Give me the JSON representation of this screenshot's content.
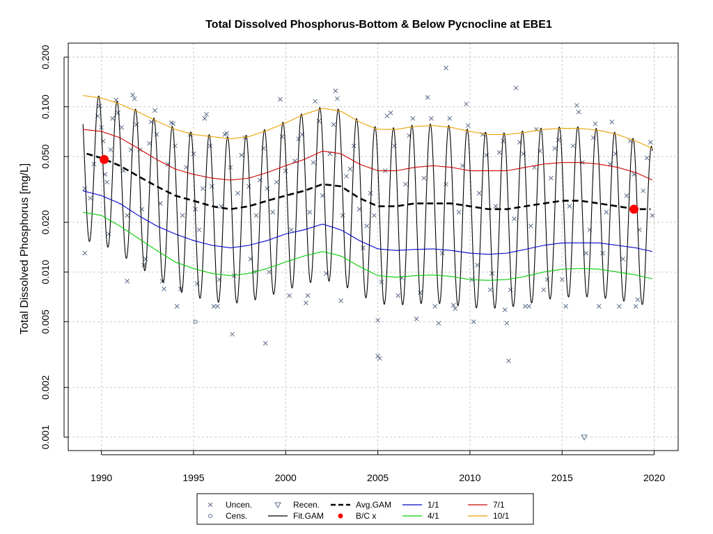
{
  "chart_data": {
    "type": "line",
    "title": "Total Dissolved Phosphorus-Bottom & Below Pycnocline at EBE1",
    "xlabel": "",
    "ylabel": "Total Dissolved Phosphorus [mg/L]",
    "y_scale": "log",
    "xlim": [
      1988.2,
      2021.3
    ],
    "ylim": [
      0.00083,
      0.243
    ],
    "x_ticks": [
      1990,
      1995,
      2000,
      2005,
      2010,
      2015,
      2020
    ],
    "x_tick_labels": [
      "1990",
      "1995",
      "2000",
      "2005",
      "2010",
      "2015",
      "2020"
    ],
    "y_ticks": [
      0.001,
      0.002,
      0.005,
      0.01,
      0.02,
      0.05,
      0.1,
      0.2
    ],
    "y_tick_labels": [
      "0.001",
      "0.002",
      "0.005",
      "0.010",
      "0.020",
      "0.050",
      "0.100",
      "0.200"
    ],
    "grid": true,
    "legend_position": "bottom-outside",
    "legend": [
      {
        "label": "Uncen.",
        "symbol": "x",
        "color": "#5a6b85"
      },
      {
        "label": "Cens.",
        "symbol": "circle-open",
        "color": "#5a6b85"
      },
      {
        "label": "Recen.",
        "symbol": "triangle-down-open",
        "color": "#5a6b85"
      },
      {
        "label": "Fit.GAM",
        "symbol": "line",
        "color": "#000000"
      },
      {
        "label": "Avg.GAM",
        "symbol": "dashed-line",
        "color": "#000000"
      },
      {
        "label": "B/C x",
        "symbol": "dot",
        "color": "#ff0000"
      },
      {
        "label": "1/1",
        "symbol": "line",
        "color": "#0000cc"
      },
      {
        "label": "4/1",
        "symbol": "line",
        "color": "#00cc00"
      },
      {
        "label": "7/1",
        "symbol": "line",
        "color": "#cc0000"
      },
      {
        "label": "10/1",
        "symbol": "line",
        "color": "#e8a000"
      }
    ],
    "series": [
      {
        "name": "Avg.GAM",
        "color": "#000000",
        "x": [
          1989.2,
          1990,
          1991,
          1992,
          1993,
          1994,
          1995,
          1996,
          1997,
          1998,
          1999,
          2000,
          2001,
          2002,
          2003,
          2004,
          2005,
          2006,
          2007,
          2008,
          2009,
          2010,
          2011,
          2012,
          2013,
          2014,
          2015,
          2016,
          2017,
          2018,
          2019,
          2019.8
        ],
        "y": [
          0.052,
          0.049,
          0.044,
          0.038,
          0.033,
          0.029,
          0.027,
          0.025,
          0.024,
          0.025,
          0.027,
          0.029,
          0.031,
          0.034,
          0.033,
          0.028,
          0.025,
          0.025,
          0.026,
          0.026,
          0.026,
          0.025,
          0.024,
          0.024,
          0.025,
          0.026,
          0.027,
          0.027,
          0.026,
          0.025,
          0.024,
          0.024
        ]
      },
      {
        "name": "1/1",
        "color": "#0000cc",
        "x": [
          1989,
          1990,
          1991,
          1992,
          1993,
          1994,
          1995,
          1996,
          1997,
          1998,
          1999,
          2000,
          2001,
          2002,
          2003,
          2004,
          2005,
          2006,
          2007,
          2008,
          2009,
          2010,
          2011,
          2012,
          2013,
          2014,
          2015,
          2016,
          2017,
          2018,
          2019,
          2019.9
        ],
        "y": [
          0.031,
          0.029,
          0.026,
          0.022,
          0.019,
          0.017,
          0.0155,
          0.0145,
          0.014,
          0.0145,
          0.0155,
          0.017,
          0.018,
          0.0195,
          0.018,
          0.0155,
          0.0138,
          0.0135,
          0.0137,
          0.0138,
          0.0135,
          0.013,
          0.0128,
          0.013,
          0.0137,
          0.0145,
          0.015,
          0.015,
          0.015,
          0.0145,
          0.014,
          0.0133
        ]
      },
      {
        "name": "4/1",
        "color": "#00cc00",
        "x": [
          1989,
          1990,
          1991,
          1992,
          1993,
          1994,
          1995,
          1996,
          1997,
          1998,
          1999,
          2000,
          2001,
          2002,
          2003,
          2004,
          2005,
          2006,
          2007,
          2008,
          2009,
          2010,
          2011,
          2012,
          2013,
          2014,
          2015,
          2016,
          2017,
          2018,
          2019,
          2019.9
        ],
        "y": [
          0.023,
          0.022,
          0.019,
          0.016,
          0.0135,
          0.0115,
          0.0105,
          0.0098,
          0.0095,
          0.0098,
          0.0105,
          0.0115,
          0.0125,
          0.0133,
          0.0125,
          0.0108,
          0.0095,
          0.0093,
          0.0095,
          0.0096,
          0.0094,
          0.009,
          0.0089,
          0.009,
          0.0094,
          0.01,
          0.0104,
          0.0105,
          0.0104,
          0.01,
          0.0096,
          0.0091
        ]
      },
      {
        "name": "7/1",
        "color": "#cc0000",
        "x": [
          1989,
          1990,
          1991,
          1992,
          1993,
          1994,
          1995,
          1996,
          1997,
          1998,
          1999,
          2000,
          2001,
          2002,
          2003,
          2004,
          2005,
          2006,
          2007,
          2008,
          2009,
          2010,
          2011,
          2012,
          2013,
          2014,
          2015,
          2016,
          2017,
          2018,
          2019,
          2019.9
        ],
        "y": [
          0.073,
          0.071,
          0.065,
          0.056,
          0.048,
          0.042,
          0.039,
          0.037,
          0.036,
          0.037,
          0.04,
          0.044,
          0.048,
          0.054,
          0.052,
          0.045,
          0.041,
          0.041,
          0.043,
          0.044,
          0.043,
          0.041,
          0.041,
          0.041,
          0.043,
          0.045,
          0.046,
          0.046,
          0.045,
          0.043,
          0.04,
          0.036
        ]
      },
      {
        "name": "10/1",
        "color": "#e8a000",
        "x": [
          1989,
          1990,
          1991,
          1992,
          1993,
          1994,
          1995,
          1996,
          1997,
          1998,
          1999,
          2000,
          2001,
          2002,
          2003,
          2004,
          2005,
          2006,
          2007,
          2008,
          2009,
          2010,
          2011,
          2012,
          2013,
          2014,
          2015,
          2016,
          2017,
          2018,
          2019,
          2019.9
        ],
        "y": [
          0.117,
          0.113,
          0.104,
          0.093,
          0.082,
          0.073,
          0.068,
          0.066,
          0.064,
          0.066,
          0.072,
          0.08,
          0.09,
          0.098,
          0.094,
          0.081,
          0.073,
          0.073,
          0.076,
          0.077,
          0.075,
          0.071,
          0.068,
          0.068,
          0.07,
          0.073,
          0.074,
          0.074,
          0.072,
          0.068,
          0.062,
          0.056
        ]
      }
    ],
    "fit_gam": {
      "name": "Fit.GAM",
      "color": "#000000",
      "x_start": 1989.0,
      "x_end": 1999.9,
      "peak_phase_year_fraction": 0.85,
      "x_end_full": 2019.9,
      "note_source_series": "oscillates seasonally between the 4/1 (low) and 10/1 (high) curves"
    },
    "bc_points": [
      {
        "x": 1990.15,
        "y": 0.048
      },
      {
        "x": 2018.9,
        "y": 0.024
      }
    ],
    "uncensored": [
      [
        1989.1,
        0.032
      ],
      [
        1989.1,
        0.013
      ],
      [
        1989.4,
        0.028
      ],
      [
        1989.6,
        0.045
      ],
      [
        1989.8,
        0.088
      ],
      [
        1989.9,
        0.101
      ],
      [
        1990.0,
        0.075
      ],
      [
        1990.1,
        0.062
      ],
      [
        1990.2,
        0.039
      ],
      [
        1990.3,
        0.035
      ],
      [
        1990.4,
        0.017
      ],
      [
        1990.5,
        0.055
      ],
      [
        1990.6,
        0.085
      ],
      [
        1990.8,
        0.11
      ],
      [
        1990.9,
        0.092
      ],
      [
        1991.1,
        0.075
      ],
      [
        1991.2,
        0.041
      ],
      [
        1991.4,
        0.022
      ],
      [
        1991.4,
        0.0088
      ],
      [
        1991.6,
        0.055
      ],
      [
        1991.7,
        0.118
      ],
      [
        1991.8,
        0.112
      ],
      [
        1991.9,
        0.078
      ],
      [
        1992.1,
        0.055
      ],
      [
        1992.2,
        0.024
      ],
      [
        1992.3,
        0.011
      ],
      [
        1992.4,
        0.012
      ],
      [
        1992.6,
        0.06
      ],
      [
        1992.7,
        0.081
      ],
      [
        1992.9,
        0.095
      ],
      [
        1993.0,
        0.068
      ],
      [
        1993.2,
        0.026
      ],
      [
        1993.3,
        0.0088
      ],
      [
        1993.4,
        0.0079
      ],
      [
        1993.6,
        0.045
      ],
      [
        1993.8,
        0.08
      ],
      [
        1993.9,
        0.079
      ],
      [
        1994.0,
        0.058
      ],
      [
        1994.1,
        0.0062
      ],
      [
        1994.3,
        0.0079
      ],
      [
        1994.4,
        0.022
      ],
      [
        1994.6,
        0.043
      ],
      [
        1994.8,
        0.068
      ],
      [
        1995.0,
        0.052
      ],
      [
        1995.1,
        0.024
      ],
      [
        1995.2,
        0.0085
      ],
      [
        1995.3,
        0.018
      ],
      [
        1995.5,
        0.032
      ],
      [
        1995.6,
        0.085
      ],
      [
        1995.7,
        0.09
      ],
      [
        1995.9,
        0.058
      ],
      [
        1996.0,
        0.033
      ],
      [
        1996.1,
        0.0062
      ],
      [
        1996.3,
        0.0062
      ],
      [
        1996.4,
        0.009
      ],
      [
        1996.5,
        0.025
      ],
      [
        1996.7,
        0.068
      ],
      [
        1996.8,
        0.069
      ],
      [
        1997.0,
        0.043
      ],
      [
        1997.1,
        0.0042
      ],
      [
        1997.2,
        0.0095
      ],
      [
        1997.4,
        0.03
      ],
      [
        1997.6,
        0.051
      ],
      [
        1997.8,
        0.065
      ],
      [
        1998.0,
        0.033
      ],
      [
        1998.1,
        0.012
      ],
      [
        1998.3,
        0.01
      ],
      [
        1998.4,
        0.022
      ],
      [
        1998.6,
        0.036
      ],
      [
        1998.8,
        0.056
      ],
      [
        1998.9,
        0.0037
      ],
      [
        1999.0,
        0.032
      ],
      [
        1999.1,
        0.01
      ],
      [
        1999.3,
        0.023
      ],
      [
        1999.5,
        0.035
      ],
      [
        1999.7,
        0.111
      ],
      [
        1999.8,
        0.066
      ],
      [
        2000.0,
        0.041
      ],
      [
        2000.2,
        0.0072
      ],
      [
        2000.3,
        0.018
      ],
      [
        2000.5,
        0.047
      ],
      [
        2000.7,
        0.064
      ],
      [
        2000.9,
        0.068
      ],
      [
        2001.1,
        0.0065
      ],
      [
        2001.2,
        0.0072
      ],
      [
        2001.3,
        0.023
      ],
      [
        2001.5,
        0.046
      ],
      [
        2001.6,
        0.108
      ],
      [
        2001.8,
        0.082
      ],
      [
        2002.0,
        0.029
      ],
      [
        2002.2,
        0.0098
      ],
      [
        2002.4,
        0.052
      ],
      [
        2002.6,
        0.078
      ],
      [
        2002.7,
        0.125
      ],
      [
        2002.8,
        0.112
      ],
      [
        2003.0,
        0.0067
      ],
      [
        2003.1,
        0.022
      ],
      [
        2003.3,
        0.038
      ],
      [
        2003.5,
        0.042
      ],
      [
        2003.7,
        0.058
      ],
      [
        2004.0,
        0.024
      ],
      [
        2004.2,
        0.014
      ],
      [
        2004.4,
        0.019
      ],
      [
        2004.6,
        0.03
      ],
      [
        2004.8,
        0.022
      ],
      [
        2005.0,
        0.0051
      ],
      [
        2005.0,
        0.0031
      ],
      [
        2005.1,
        0.003
      ],
      [
        2005.2,
        0.0087
      ],
      [
        2005.4,
        0.041
      ],
      [
        2005.5,
        0.088
      ],
      [
        2005.7,
        0.092
      ],
      [
        2005.9,
        0.058
      ],
      [
        2006.1,
        0.0072
      ],
      [
        2006.3,
        0.0092
      ],
      [
        2006.5,
        0.034
      ],
      [
        2006.7,
        0.067
      ],
      [
        2006.9,
        0.085
      ],
      [
        2007.1,
        0.0052
      ],
      [
        2007.3,
        0.0075
      ],
      [
        2007.5,
        0.037
      ],
      [
        2007.7,
        0.114
      ],
      [
        2007.9,
        0.085
      ],
      [
        2008.1,
        0.0062
      ],
      [
        2008.3,
        0.0049
      ],
      [
        2008.5,
        0.013
      ],
      [
        2008.7,
        0.034
      ],
      [
        2008.7,
        0.172
      ],
      [
        2008.9,
        0.085
      ],
      [
        2009.1,
        0.0063
      ],
      [
        2009.2,
        0.006
      ],
      [
        2009.4,
        0.023
      ],
      [
        2009.6,
        0.044
      ],
      [
        2009.8,
        0.104
      ],
      [
        2009.9,
        0.077
      ],
      [
        2010.1,
        0.009
      ],
      [
        2010.2,
        0.005
      ],
      [
        2010.4,
        0.011
      ],
      [
        2010.5,
        0.03
      ],
      [
        2010.7,
        0.068
      ],
      [
        2010.9,
        0.051
      ],
      [
        2011.1,
        0.0078
      ],
      [
        2011.2,
        0.0098
      ],
      [
        2011.4,
        0.025
      ],
      [
        2011.6,
        0.053
      ],
      [
        2011.8,
        0.062
      ],
      [
        2011.9,
        0.0059
      ],
      [
        2012.0,
        0.0049
      ],
      [
        2012.1,
        0.0029
      ],
      [
        2012.2,
        0.0078
      ],
      [
        2012.4,
        0.021
      ],
      [
        2012.5,
        0.13
      ],
      [
        2012.7,
        0.061
      ],
      [
        2012.9,
        0.052
      ],
      [
        2013.0,
        0.0062
      ],
      [
        2013.2,
        0.0062
      ],
      [
        2013.3,
        0.019
      ],
      [
        2013.5,
        0.043
      ],
      [
        2013.6,
        0.073
      ],
      [
        2013.8,
        0.054
      ],
      [
        2014.0,
        0.0078
      ],
      [
        2014.2,
        0.009
      ],
      [
        2014.4,
        0.037
      ],
      [
        2014.6,
        0.056
      ],
      [
        2014.8,
        0.063
      ],
      [
        2015.0,
        0.009
      ],
      [
        2015.2,
        0.0062
      ],
      [
        2015.4,
        0.025
      ],
      [
        2015.6,
        0.058
      ],
      [
        2015.8,
        0.102
      ],
      [
        2015.9,
        0.093
      ],
      [
        2016.1,
        0.046
      ],
      [
        2016.3,
        0.013
      ],
      [
        2016.5,
        0.018
      ],
      [
        2016.7,
        0.065
      ],
      [
        2016.8,
        0.079
      ],
      [
        2017.0,
        0.0062
      ],
      [
        2017.2,
        0.013
      ],
      [
        2017.4,
        0.023
      ],
      [
        2017.6,
        0.045
      ],
      [
        2017.7,
        0.081
      ],
      [
        2017.9,
        0.052
      ],
      [
        2018.1,
        0.0062
      ],
      [
        2018.3,
        0.012
      ],
      [
        2018.5,
        0.029
      ],
      [
        2018.7,
        0.062
      ],
      [
        2018.9,
        0.039
      ],
      [
        2019.0,
        0.0062
      ],
      [
        2019.1,
        0.0068
      ],
      [
        2019.2,
        0.018
      ],
      [
        2019.4,
        0.031
      ],
      [
        2019.6,
        0.049
      ],
      [
        2019.8,
        0.061
      ],
      [
        2019.9,
        0.022
      ]
    ],
    "censored": [
      [
        1995.1,
        0.005
      ]
    ],
    "recensored": [
      [
        2016.2,
        0.001
      ]
    ]
  }
}
